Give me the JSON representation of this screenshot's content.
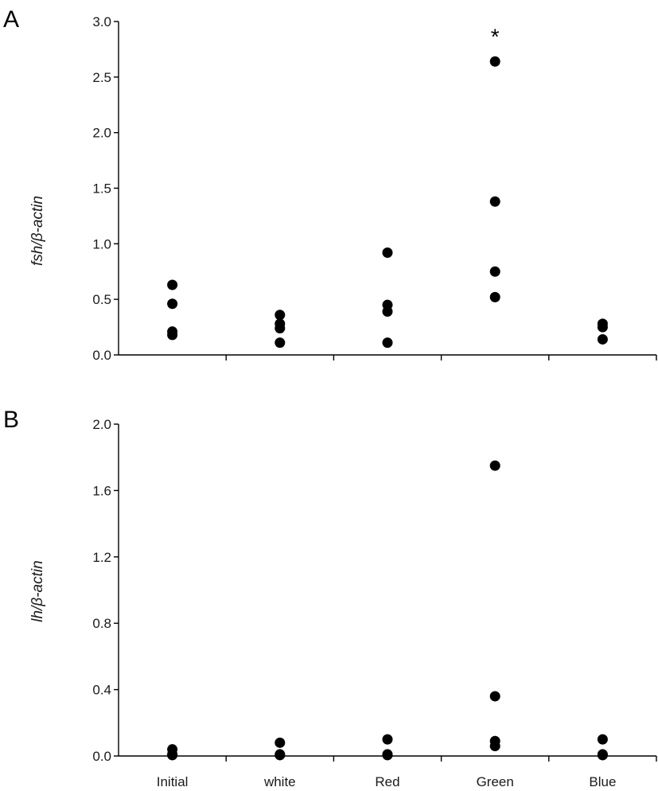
{
  "chart_data": [
    {
      "panel": "A",
      "type": "scatter",
      "ylabel": "fsh/β-actin",
      "ylim": [
        0,
        3.0
      ],
      "yticks": [
        "0.0",
        "0.5",
        "1.0",
        "1.5",
        "2.0",
        "2.5",
        "3.0"
      ],
      "categories": [
        "Initial",
        "white",
        "Red",
        "Green",
        "Blue"
      ],
      "show_category_labels": false,
      "points": {
        "Initial": [
          0.63,
          0.46,
          0.21,
          0.18
        ],
        "white": [
          0.36,
          0.28,
          0.24,
          0.11
        ],
        "Red": [
          0.92,
          0.45,
          0.39,
          0.11
        ],
        "Green": [
          2.64,
          1.38,
          0.75,
          0.52
        ],
        "Blue": [
          0.28,
          0.25,
          0.14
        ]
      },
      "annotations": [
        {
          "category": "Green",
          "text": "*"
        }
      ],
      "grid": false,
      "legend": "none"
    },
    {
      "panel": "B",
      "type": "scatter",
      "ylabel": "lh/β-actin",
      "ylim": [
        0,
        2.0
      ],
      "yticks": [
        "0.0",
        "0.4",
        "0.8",
        "1.2",
        "1.6",
        "2.0"
      ],
      "categories": [
        "Initial",
        "white",
        "Red",
        "Green",
        "Blue"
      ],
      "show_category_labels": true,
      "points": {
        "Initial": [
          0.04,
          0.01,
          0.005
        ],
        "white": [
          0.08,
          0.01,
          0.005
        ],
        "Red": [
          0.1,
          0.01,
          0.005
        ],
        "Green": [
          1.75,
          0.36,
          0.09,
          0.06
        ],
        "Blue": [
          0.1,
          0.01,
          0.005
        ]
      },
      "annotations": [],
      "grid": false,
      "legend": "none"
    }
  ]
}
